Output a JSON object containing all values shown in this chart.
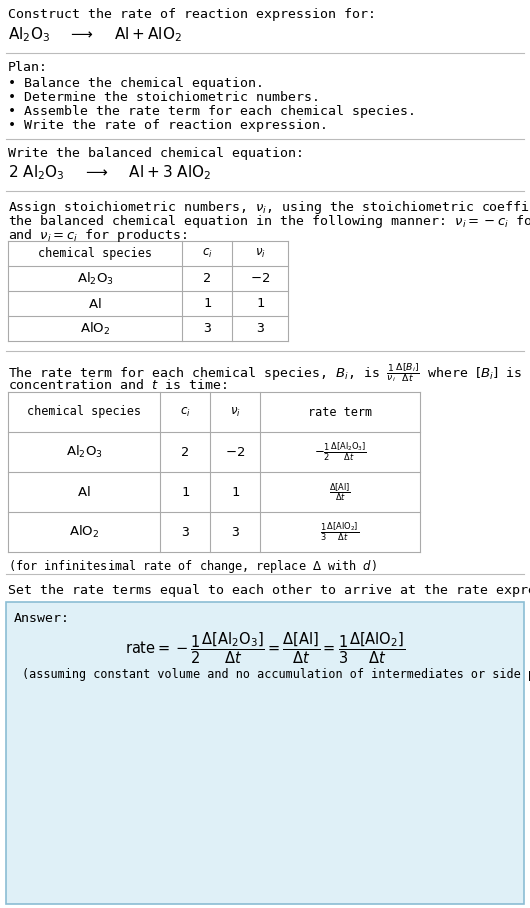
{
  "bg_color": "#ffffff",
  "title_line1": "Construct the rate of reaction expression for:",
  "title_line2_plain": "Al",
  "plan_header": "Plan:",
  "plan_items": [
    "• Balance the chemical equation.",
    "• Determine the stoichiometric numbers.",
    "• Assemble the rate term for each chemical species.",
    "• Write the rate of reaction expression."
  ],
  "balanced_header": "Write the balanced chemical equation:",
  "assign_text1": "Assign stoichiometric numbers, $\\nu_i$, using the stoichiometric coefficients, $c_i$, from",
  "assign_text2": "the balanced chemical equation in the following manner: $\\nu_i = -c_i$ for reactants",
  "assign_text3": "and $\\nu_i = c_i$ for products:",
  "table1_col_headers": [
    "chemical species",
    "$c_i$",
    "$\\nu_i$"
  ],
  "table1_rows": [
    [
      "$\\mathrm{Al_2O_3}$",
      "2",
      "$-2$"
    ],
    [
      "$\\mathrm{Al}$",
      "1",
      "1"
    ],
    [
      "$\\mathrm{AlO_2}$",
      "3",
      "3"
    ]
  ],
  "rate_text1": "The rate term for each chemical species, $B_i$, is $\\frac{1}{\\nu_i}\\frac{\\Delta[B_i]}{\\Delta t}$ where $[B_i]$ is the amount",
  "rate_text2": "concentration and $t$ is time:",
  "table2_col_headers": [
    "chemical species",
    "$c_i$",
    "$\\nu_i$",
    "rate term"
  ],
  "table2_rows": [
    [
      "$\\mathrm{Al_2O_3}$",
      "2",
      "$-2$",
      "$-\\frac{1}{2}\\frac{\\Delta[\\mathrm{Al_2O_3}]}{\\Delta t}$"
    ],
    [
      "$\\mathrm{Al}$",
      "1",
      "1",
      "$\\frac{\\Delta[\\mathrm{Al}]}{\\Delta t}$"
    ],
    [
      "$\\mathrm{AlO_2}$",
      "3",
      "3",
      "$\\frac{1}{3}\\frac{\\Delta[\\mathrm{AlO_2}]}{\\Delta t}$"
    ]
  ],
  "infinitesimal_note": "(for infinitesimal rate of change, replace $\\Delta$ with $d$)",
  "set_rate_text": "Set the rate terms equal to each other to arrive at the rate expression:",
  "answer_label": "Answer:",
  "answer_note": "(assuming constant volume and no accumulation of intermediates or side products)",
  "answer_box_color": "#dff0f7",
  "answer_box_border": "#8bbdd4",
  "divider_color": "#bbbbbb",
  "table_line_color": "#aaaaaa",
  "font_family": "monospace",
  "base_fontsize": 9.5,
  "small_fontsize": 8.5
}
